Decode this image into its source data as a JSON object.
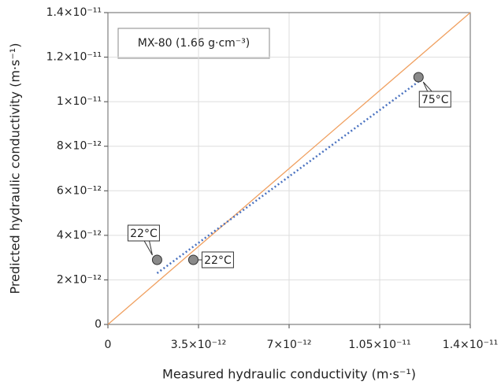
{
  "chart_data": {
    "type": "scatter",
    "title": "MX-80 (1.66 g·cm⁻³)",
    "x_label": "Measured hydraulic conductivity (m·s⁻¹)",
    "y_label": "Predicted hydraulic conductivity (m·s⁻¹)",
    "series": [
      {
        "x": [
          1.9e-12,
          3.3e-12,
          1.2e-11
        ],
        "values": [
          2.9e-12,
          2.9e-12,
          1.11e-11
        ],
        "value_labels": [
          "22°C",
          "22°C",
          "75°C"
        ],
        "color": "#8a8a8a"
      }
    ],
    "trend_line": {
      "x": [
        1.9e-12,
        1.2e-11
      ],
      "y": [
        2.3e-12,
        1.09e-11
      ],
      "color": "#4a72c0"
    },
    "reference_line": {
      "x": [
        0,
        1.4e-11
      ],
      "y": [
        0,
        1.4e-11
      ],
      "color": "#f0a060"
    },
    "xlim": [
      0,
      1.4e-11
    ],
    "xticks": [
      0,
      {
        "value": 3.5e-12,
        "label": "3.5×10⁻¹²"
      },
      {
        "value": 7e-12,
        "label": "7×10⁻¹²"
      },
      {
        "value": 1.05e-11,
        "label": "1.05×10⁻¹¹"
      },
      {
        "value": 1.4e-11,
        "label": "1.4×10⁻¹¹"
      }
    ],
    "ylim": [
      0,
      1.4e-11
    ],
    "yticks": [
      0,
      {
        "value": 2e-12,
        "label": "2×10⁻¹²"
      },
      {
        "value": 4e-12,
        "label": "4×10⁻¹²"
      },
      {
        "value": 6e-12,
        "label": "6×10⁻¹²"
      },
      {
        "value": 8e-12,
        "label": "8×10⁻¹²"
      },
      {
        "value": 1e-11,
        "label": "1×10⁻¹¹"
      },
      {
        "value": 1.2e-11,
        "label": "1.2×10⁻¹¹"
      },
      {
        "value": 1.4e-11,
        "label": "1.4×10⁻¹¹"
      }
    ],
    "grid": true
  }
}
